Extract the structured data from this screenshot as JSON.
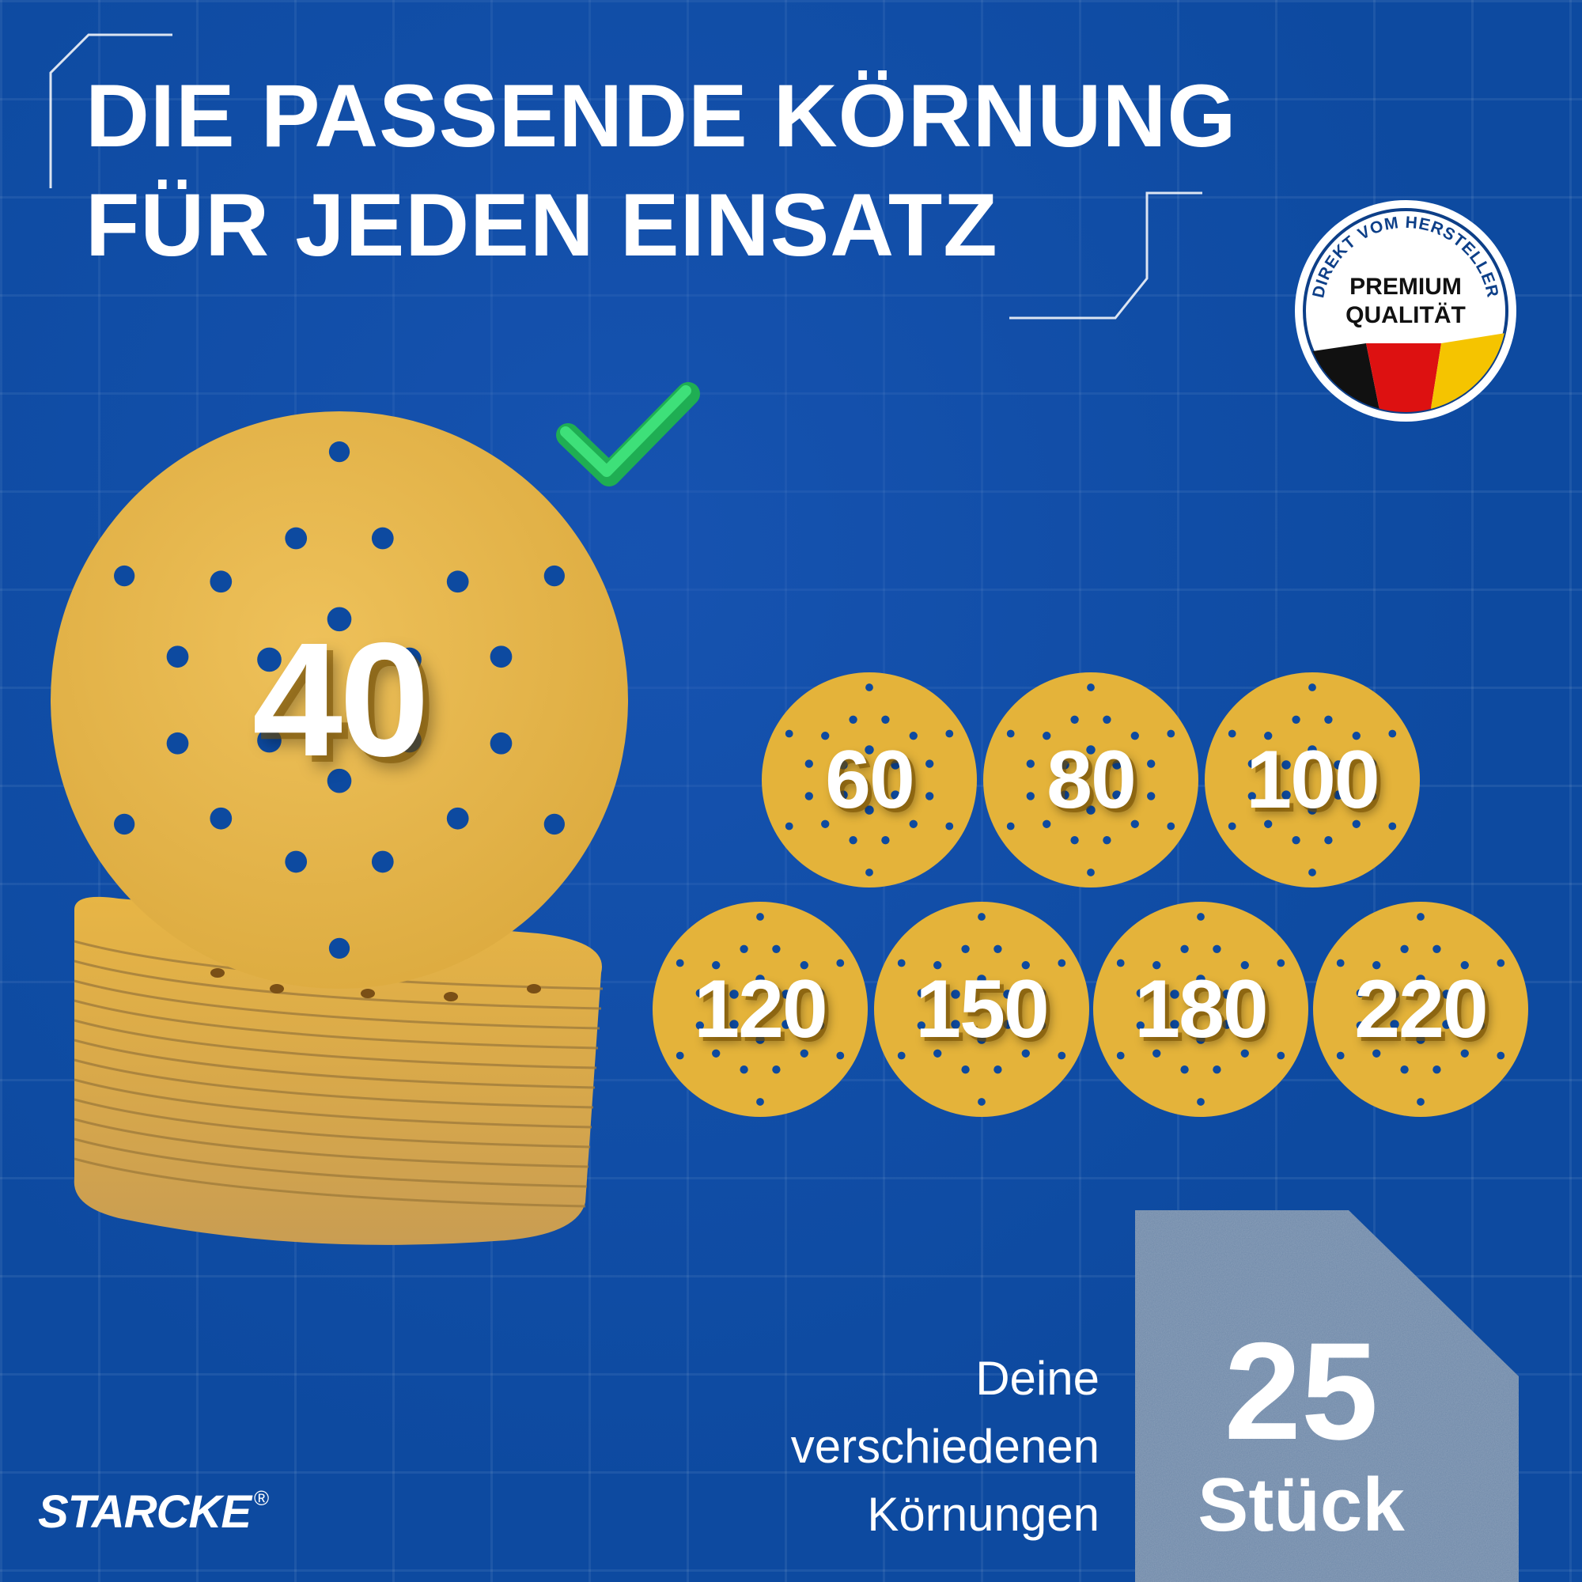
{
  "headline": {
    "line1": "DIE PASSENDE KÖRNUNG",
    "line2": "FÜR JEDEN EINSATZ"
  },
  "badge": {
    "arc_text": "DIREKT VOM HERSTELLER",
    "line1": "PREMIUM",
    "line2": "QUALITÄT",
    "flag_colors": [
      "#111111",
      "#dd1111",
      "#f5c400"
    ]
  },
  "featured_grit": "40",
  "grits": [
    "60",
    "80",
    "100",
    "120",
    "150",
    "180",
    "220"
  ],
  "count": {
    "number": "25",
    "unit": "Stück"
  },
  "description": [
    "Deine",
    "verschiedenen",
    "Körnungen"
  ],
  "brand": {
    "name": "STARCKE",
    "mark": "®"
  },
  "colors": {
    "background": "#0d4aa0",
    "disc": "#e4b33a",
    "check": "#22c55e",
    "panel": "#6e88a8"
  }
}
